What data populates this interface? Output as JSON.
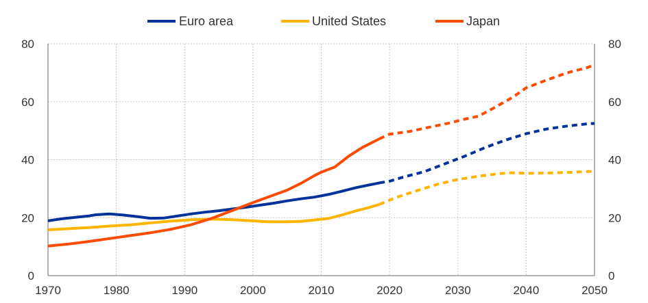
{
  "chart_data": {
    "type": "line",
    "title": "",
    "xlabel": "",
    "ylabel": "",
    "xlim": [
      1970,
      2050
    ],
    "ylim": [
      0,
      80
    ],
    "x_ticks": [
      1970,
      1980,
      1990,
      2000,
      2010,
      2020,
      2030,
      2040,
      2050
    ],
    "y_ticks": [
      0,
      20,
      40,
      60,
      80
    ],
    "grid": "on",
    "legend_position": "top-center",
    "y_axis_sides": [
      "left",
      "right"
    ],
    "series": [
      {
        "name": "Euro area",
        "color": "#003299",
        "actual": [
          [
            1970,
            18.9
          ],
          [
            1972,
            19.6
          ],
          [
            1974,
            20.1
          ],
          [
            1976,
            20.6
          ],
          [
            1977,
            21.0
          ],
          [
            1979,
            21.3
          ],
          [
            1981,
            20.9
          ],
          [
            1983,
            20.4
          ],
          [
            1985,
            19.8
          ],
          [
            1987,
            19.9
          ],
          [
            1989,
            20.6
          ],
          [
            1991,
            21.3
          ],
          [
            1993,
            21.9
          ],
          [
            1995,
            22.4
          ],
          [
            1997,
            23.0
          ],
          [
            1999,
            23.6
          ],
          [
            2001,
            24.3
          ],
          [
            2003,
            25.0
          ],
          [
            2005,
            25.8
          ],
          [
            2007,
            26.5
          ],
          [
            2009,
            27.1
          ],
          [
            2011,
            28.0
          ],
          [
            2013,
            29.1
          ],
          [
            2015,
            30.3
          ],
          [
            2017,
            31.3
          ],
          [
            2018.5,
            32.0
          ]
        ],
        "projection": [
          [
            2018.5,
            32.0
          ],
          [
            2020,
            32.6
          ],
          [
            2022,
            34.0
          ],
          [
            2025,
            35.8
          ],
          [
            2028,
            38.5
          ],
          [
            2031,
            41.2
          ],
          [
            2034,
            44.2
          ],
          [
            2037,
            46.8
          ],
          [
            2040,
            49.0
          ],
          [
            2043,
            50.6
          ],
          [
            2046,
            51.6
          ],
          [
            2049,
            52.4
          ],
          [
            2050,
            52.5
          ]
        ]
      },
      {
        "name": "United States",
        "color": "#FFB400",
        "actual": [
          [
            1970,
            15.8
          ],
          [
            1973,
            16.2
          ],
          [
            1976,
            16.6
          ],
          [
            1979,
            17.1
          ],
          [
            1982,
            17.5
          ],
          [
            1985,
            18.2
          ],
          [
            1988,
            18.8
          ],
          [
            1991,
            19.3
          ],
          [
            1994,
            19.5
          ],
          [
            1997,
            19.3
          ],
          [
            2000,
            18.9
          ],
          [
            2002,
            18.6
          ],
          [
            2005,
            18.6
          ],
          [
            2007,
            18.7
          ],
          [
            2009,
            19.2
          ],
          [
            2011,
            19.7
          ],
          [
            2013,
            20.9
          ],
          [
            2015,
            22.3
          ],
          [
            2017,
            23.5
          ],
          [
            2018.5,
            24.6
          ]
        ],
        "projection": [
          [
            2018.5,
            24.6
          ],
          [
            2021,
            27.0
          ],
          [
            2024,
            29.3
          ],
          [
            2027,
            31.5
          ],
          [
            2030,
            33.2
          ],
          [
            2033,
            34.3
          ],
          [
            2036,
            35.2
          ],
          [
            2038,
            35.5
          ],
          [
            2040,
            35.3
          ],
          [
            2043,
            35.4
          ],
          [
            2046,
            35.6
          ],
          [
            2050,
            36.0
          ]
        ]
      },
      {
        "name": "Japan",
        "color": "#FF4B00",
        "actual": [
          [
            1970,
            10.2
          ],
          [
            1973,
            10.9
          ],
          [
            1976,
            11.8
          ],
          [
            1979,
            12.8
          ],
          [
            1982,
            13.8
          ],
          [
            1985,
            14.8
          ],
          [
            1988,
            16.0
          ],
          [
            1991,
            17.6
          ],
          [
            1994,
            19.8
          ],
          [
            1997,
            22.5
          ],
          [
            2000,
            25.2
          ],
          [
            2003,
            27.8
          ],
          [
            2005,
            29.5
          ],
          [
            2007,
            31.8
          ],
          [
            2009,
            34.5
          ],
          [
            2010,
            35.7
          ],
          [
            2012,
            37.5
          ],
          [
            2014,
            41.2
          ],
          [
            2016,
            44.2
          ],
          [
            2018.5,
            47.2
          ]
        ],
        "projection": [
          [
            2018.5,
            47.2
          ],
          [
            2020,
            48.8
          ],
          [
            2023,
            49.8
          ],
          [
            2026,
            51.3
          ],
          [
            2029,
            52.8
          ],
          [
            2031,
            54.0
          ],
          [
            2033,
            55.0
          ],
          [
            2035,
            57.5
          ],
          [
            2038,
            61.5
          ],
          [
            2040,
            64.8
          ],
          [
            2043,
            67.5
          ],
          [
            2046,
            70.0
          ],
          [
            2049,
            71.8
          ],
          [
            2050,
            72.8
          ]
        ]
      }
    ]
  }
}
